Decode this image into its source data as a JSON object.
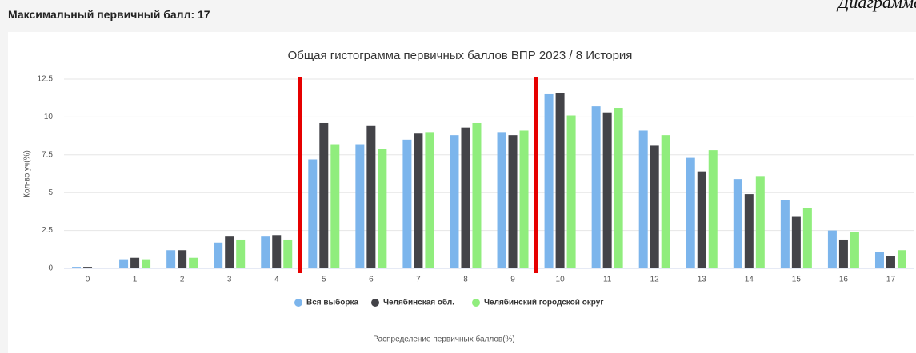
{
  "header": {
    "title": "Максимальный первичный балл: 17",
    "corner": "Диаграмма"
  },
  "chart_data": {
    "type": "bar",
    "title": "Общая гистограмма первичных баллов ВПР 2023 / 8 История",
    "y_label": "Кол-во уч(%)",
    "x_label": "Распределение первичных баллов(%)",
    "categories": [
      "0",
      "1",
      "2",
      "3",
      "4",
      "5",
      "6",
      "7",
      "8",
      "9",
      "10",
      "11",
      "12",
      "13",
      "14",
      "15",
      "16",
      "17"
    ],
    "series": [
      {
        "name": "Вся выборка",
        "color": "#7cb5ec",
        "values": [
          0.1,
          0.6,
          1.2,
          1.7,
          2.1,
          7.2,
          8.2,
          8.5,
          8.8,
          9.0,
          11.5,
          10.7,
          9.1,
          7.3,
          5.9,
          4.5,
          2.5,
          1.1
        ]
      },
      {
        "name": "Челябинская обл.",
        "color": "#434348",
        "values": [
          0.1,
          0.7,
          1.2,
          2.1,
          2.2,
          9.6,
          9.4,
          8.9,
          9.3,
          8.8,
          11.6,
          10.3,
          8.1,
          6.4,
          4.9,
          3.4,
          1.9,
          0.8
        ]
      },
      {
        "name": "Челябинский городской округ",
        "color": "#90ed7d",
        "values": [
          0.05,
          0.6,
          0.7,
          1.9,
          1.9,
          8.2,
          7.9,
          9.0,
          9.6,
          9.1,
          10.1,
          10.6,
          8.8,
          7.8,
          6.1,
          4.0,
          2.4,
          1.2
        ]
      }
    ],
    "ylim": [
      0,
      12.5
    ],
    "yticks": [
      0,
      2.5,
      5,
      7.5,
      10,
      12.5
    ],
    "grid": true
  }
}
